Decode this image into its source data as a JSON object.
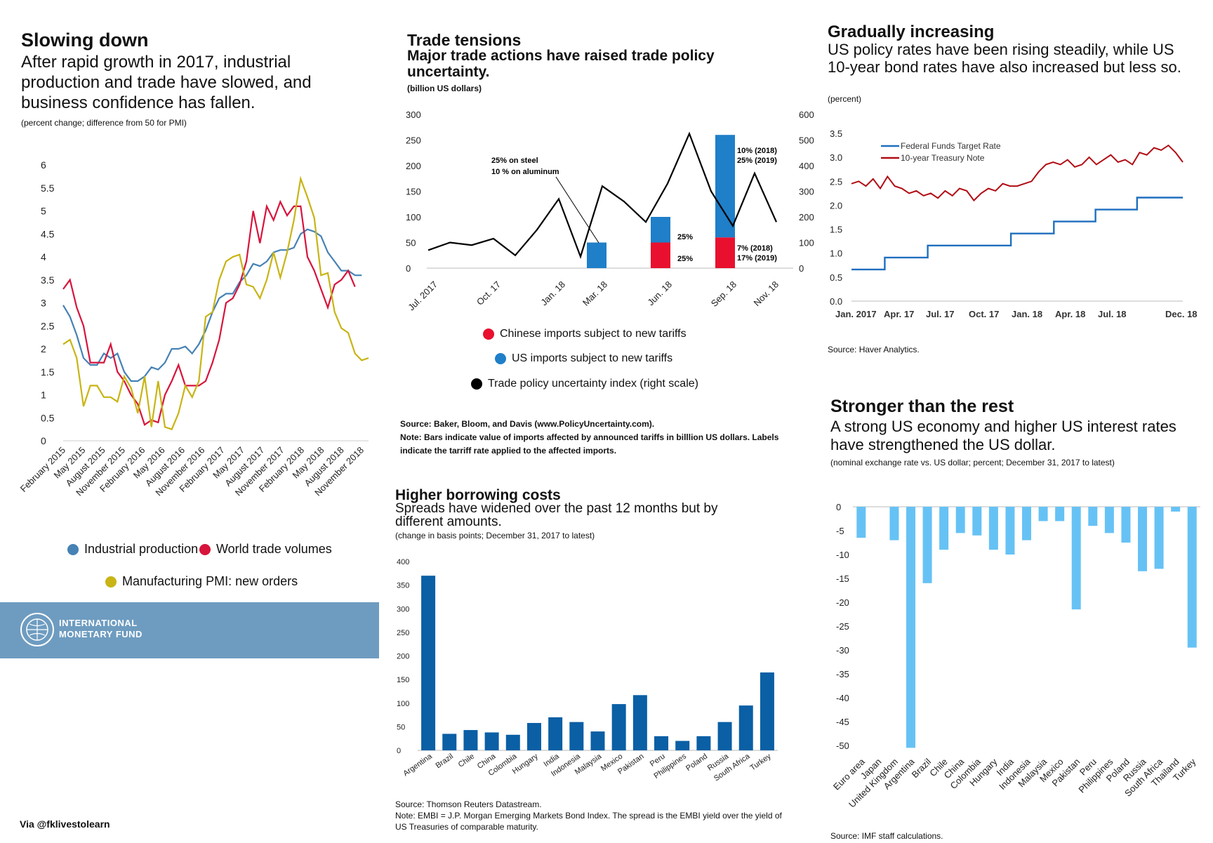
{
  "colors": {
    "blue": "#4682b4",
    "red": "#d7143c",
    "olive": "#c8b414",
    "barblue": "#1f7fc8",
    "barred": "#e8102e",
    "darkblue": "#0a5fa5",
    "lightblue": "#66c2f5",
    "navy": "#1f6fbf",
    "darkred": "#b10c14"
  },
  "p1": {
    "title": "Slowing down",
    "subtitle": "After rapid growth in 2017, industrial production and trade have slowed, and business confidence has fallen.",
    "unit": "(percent change; difference from 50 for PMI)",
    "legend": [
      "Industrial production",
      "World trade volumes",
      "Manufacturing PMI: new orders"
    ]
  },
  "p2": {
    "title": "Trade tensions",
    "subtitle": "Major trade actions have raised trade policy uncertainty.",
    "unit": "(billion US dollars)",
    "legend": [
      "Chinese imports subject to new tariffs",
      "US imports subject to new tariffs",
      "Trade policy uncertainty index (right scale)"
    ],
    "source": "Source: Baker, Bloom, and Davis (www.PolicyUncertainty.com).",
    "note": "Note: Bars indicate value of imports affected by announced tariffs in billlion US dollars. Labels indicate the tarriff rate applied to the affected imports.",
    "ann": {
      "steel": "25% on steel",
      "aluminum": "10 % on aluminum",
      "jun_us": "25%",
      "jun_cn": "25%",
      "sep_us_a": "10% (2018)",
      "sep_us_b": "25% (2019)",
      "sep_cn_a": "7% (2018)",
      "sep_cn_b": "17% (2019)"
    }
  },
  "p3": {
    "title": "Gradually increasing",
    "subtitle": "US policy rates have been rising steadily, while US 10-year bond rates have also increased but less so.",
    "unit": "(percent)",
    "legend": [
      "Federal Funds Target Rate",
      "10-year Treasury Note"
    ],
    "source": "Source: Haver Analytics."
  },
  "p4": {
    "title": "Higher borrowing costs",
    "subtitle": "Spreads have widened over the past 12 months but by different amounts.",
    "unit": "(change in basis points; December 31, 2017 to latest)",
    "source": "Source: Thomson Reuters Datastream.",
    "note": "Note: EMBI = J.P. Morgan Emerging Markets Bond Index. The spread is the EMBI yield over the yield of US Treasuries of comparable maturity."
  },
  "p5": {
    "title": "Stronger than the rest",
    "subtitle": "A strong US economy and higher US interest rates have strengthened the US dollar.",
    "unit": "(nominal exchange rate vs. US dollar; percent; December 31, 2017 to latest)",
    "source": "Source: IMF staff calculations."
  },
  "imf": {
    "line1": "INTERNATIONAL",
    "line2": "MONETARY FUND"
  },
  "via": "Via @fklivestolearn",
  "chart_data": [
    {
      "type": "line",
      "ylim": [
        0,
        6
      ],
      "yticks": [
        "0",
        "0.5",
        "1",
        "1.5",
        "2",
        "2.5",
        "3",
        "3.5",
        "4",
        "4.5",
        "5",
        "5.5",
        "6"
      ],
      "xticks": [
        "February 2015",
        "May 2015",
        "August 2015",
        "November 2015",
        "February 2016",
        "May 2016",
        "August 2016",
        "November 2016",
        "February 2017",
        "May 2017",
        "August 2017",
        "November 2017",
        "February 2018",
        "May 2018",
        "August 2018",
        "November 2018"
      ],
      "series": [
        {
          "name": "Industrial production",
          "values": [
            2.95,
            2.7,
            2.3,
            1.8,
            1.65,
            1.65,
            1.9,
            1.8,
            1.9,
            1.5,
            1.3,
            1.3,
            1.4,
            1.6,
            1.55,
            1.7,
            2.0,
            2.0,
            2.05,
            1.9,
            2.1,
            2.4,
            2.8,
            3.1,
            3.2,
            3.2,
            3.45,
            3.6,
            3.85,
            3.8,
            3.9,
            4.1,
            4.15,
            4.15,
            4.2,
            4.5,
            4.6,
            4.55,
            4.45,
            4.1,
            3.9,
            3.7,
            3.7,
            3.6,
            3.6
          ]
        },
        {
          "name": "World trade volumes",
          "values": [
            3.3,
            3.5,
            2.9,
            2.5,
            1.7,
            1.7,
            1.7,
            2.1,
            1.5,
            1.3,
            1.0,
            0.8,
            0.35,
            0.45,
            0.4,
            1.0,
            1.3,
            1.65,
            1.2,
            1.2,
            1.2,
            1.3,
            1.7,
            2.2,
            3.0,
            3.1,
            3.4,
            3.9,
            5.0,
            4.3,
            5.1,
            4.8,
            5.2,
            4.9,
            5.1,
            5.1,
            4.0,
            3.7,
            3.3,
            2.9,
            3.4,
            3.5,
            3.7,
            3.35
          ]
        },
        {
          "name": "Manufacturing PMI: new orders",
          "values": [
            2.1,
            2.2,
            1.8,
            0.75,
            1.2,
            1.2,
            0.95,
            0.95,
            0.85,
            1.4,
            1.15,
            0.6,
            1.4,
            0.3,
            1.3,
            0.3,
            0.25,
            0.6,
            1.2,
            0.95,
            1.3,
            2.7,
            2.8,
            3.5,
            3.9,
            4.0,
            4.05,
            3.4,
            3.35,
            3.1,
            3.5,
            4.1,
            3.55,
            4.1,
            4.8,
            5.7,
            5.3,
            4.85,
            3.6,
            3.65,
            2.8,
            2.45,
            2.35,
            1.9,
            1.75,
            1.8
          ]
        }
      ]
    },
    {
      "type": "bar",
      "categories": [
        "Jul. 2017",
        "Oct. 17",
        "Jan. 18",
        "Mar. 18",
        "Jun. 18",
        "Sep. 18",
        "Nov. 18"
      ],
      "ylim": [
        0,
        300
      ],
      "y2lim": [
        0,
        600
      ],
      "yticks": [
        "0",
        "50",
        "100",
        "150",
        "200",
        "250",
        "300"
      ],
      "y2ticks": [
        "0",
        "100",
        "200",
        "300",
        "400",
        "500",
        "600"
      ],
      "bars": [
        {
          "x": "Mar. 18",
          "chinese": 0,
          "us": 50
        },
        {
          "x": "Jun. 18",
          "chinese": 50,
          "us": 50
        },
        {
          "x": "Sep. 18",
          "chinese": 60,
          "us": 200
        }
      ],
      "line": {
        "name": "Trade policy uncertainty index (right scale)",
        "x": [
          0,
          1,
          2,
          3,
          4,
          5,
          6,
          7,
          8,
          9,
          10,
          11,
          12,
          13,
          14,
          15,
          16
        ],
        "values": [
          70,
          100,
          90,
          115,
          50,
          150,
          270,
          45,
          320,
          260,
          180,
          330,
          525,
          300,
          165,
          370,
          180
        ]
      }
    },
    {
      "type": "line",
      "ylim": [
        0,
        3.5
      ],
      "yticks": [
        "0.0",
        "0.5",
        "1.0",
        "1.5",
        "2.0",
        "2.5",
        "3.0",
        "3.5"
      ],
      "xticks": [
        "Jan. 2017",
        "Apr. 17",
        "Jul. 17",
        "Oct. 17",
        "Jan. 18",
        "Apr. 18",
        "Jul. 18",
        "Dec. 18"
      ],
      "series": [
        {
          "name": "Federal Funds Target Rate",
          "steps": [
            [
              0,
              0.66
            ],
            [
              2.4,
              0.91
            ],
            [
              5.5,
              1.16
            ],
            [
              11.5,
              1.41
            ],
            [
              14.6,
              1.66
            ],
            [
              17.6,
              1.91
            ],
            [
              20.6,
              2.16
            ],
            [
              23.9,
              2.16
            ]
          ]
        },
        {
          "name": "10-year Treasury Note",
          "values": [
            2.45,
            2.5,
            2.4,
            2.55,
            2.35,
            2.6,
            2.4,
            2.35,
            2.25,
            2.3,
            2.2,
            2.25,
            2.15,
            2.3,
            2.2,
            2.35,
            2.3,
            2.1,
            2.25,
            2.35,
            2.3,
            2.45,
            2.4,
            2.4,
            2.45,
            2.5,
            2.7,
            2.85,
            2.9,
            2.85,
            2.95,
            2.8,
            2.85,
            3.0,
            2.85,
            2.95,
            3.05,
            2.9,
            2.95,
            2.85,
            3.1,
            3.05,
            3.2,
            3.15,
            3.25,
            3.1,
            2.9
          ]
        }
      ]
    },
    {
      "type": "bar",
      "categories": [
        "Argentina",
        "Brazil",
        "Chile",
        "China",
        "Colombia",
        "Hungary",
        "India",
        "Indonesia",
        "Malaysia",
        "Mexico",
        "Pakistan",
        "Peru",
        "Philippines",
        "Poland",
        "Russia",
        "South Africa",
        "Turkey"
      ],
      "values": [
        370,
        35,
        43,
        38,
        33,
        58,
        70,
        60,
        40,
        98,
        117,
        30,
        20,
        30,
        60,
        95,
        165
      ],
      "ylim": [
        0,
        400
      ],
      "yticks": [
        "0",
        "50",
        "100",
        "150",
        "200",
        "250",
        "300",
        "350",
        "400"
      ]
    },
    {
      "type": "bar",
      "categories": [
        "Euro area",
        "Japan",
        "United Kingdom",
        "Argentina",
        "Brazil",
        "Chile",
        "China",
        "Colombia",
        "Hungary",
        "India",
        "Indonesia",
        "Malaysia",
        "Mexico",
        "Pakistan",
        "Peru",
        "Philippines",
        "Poland",
        "Russia",
        "South Africa",
        "Thailand",
        "Turkey"
      ],
      "values": [
        -6.5,
        0,
        -7,
        -50.5,
        -16,
        -9,
        -5.5,
        -6,
        -9,
        -10,
        -7,
        -3,
        -3,
        -21.5,
        -4,
        -5.5,
        -7.5,
        -13.5,
        -13,
        -1,
        -29.5
      ],
      "ylim": [
        -50,
        0
      ],
      "yticks": [
        "0",
        "-5",
        "-10",
        "-15",
        "-20",
        "-25",
        "-30",
        "-35",
        "-40",
        "-45",
        "-50"
      ]
    }
  ]
}
